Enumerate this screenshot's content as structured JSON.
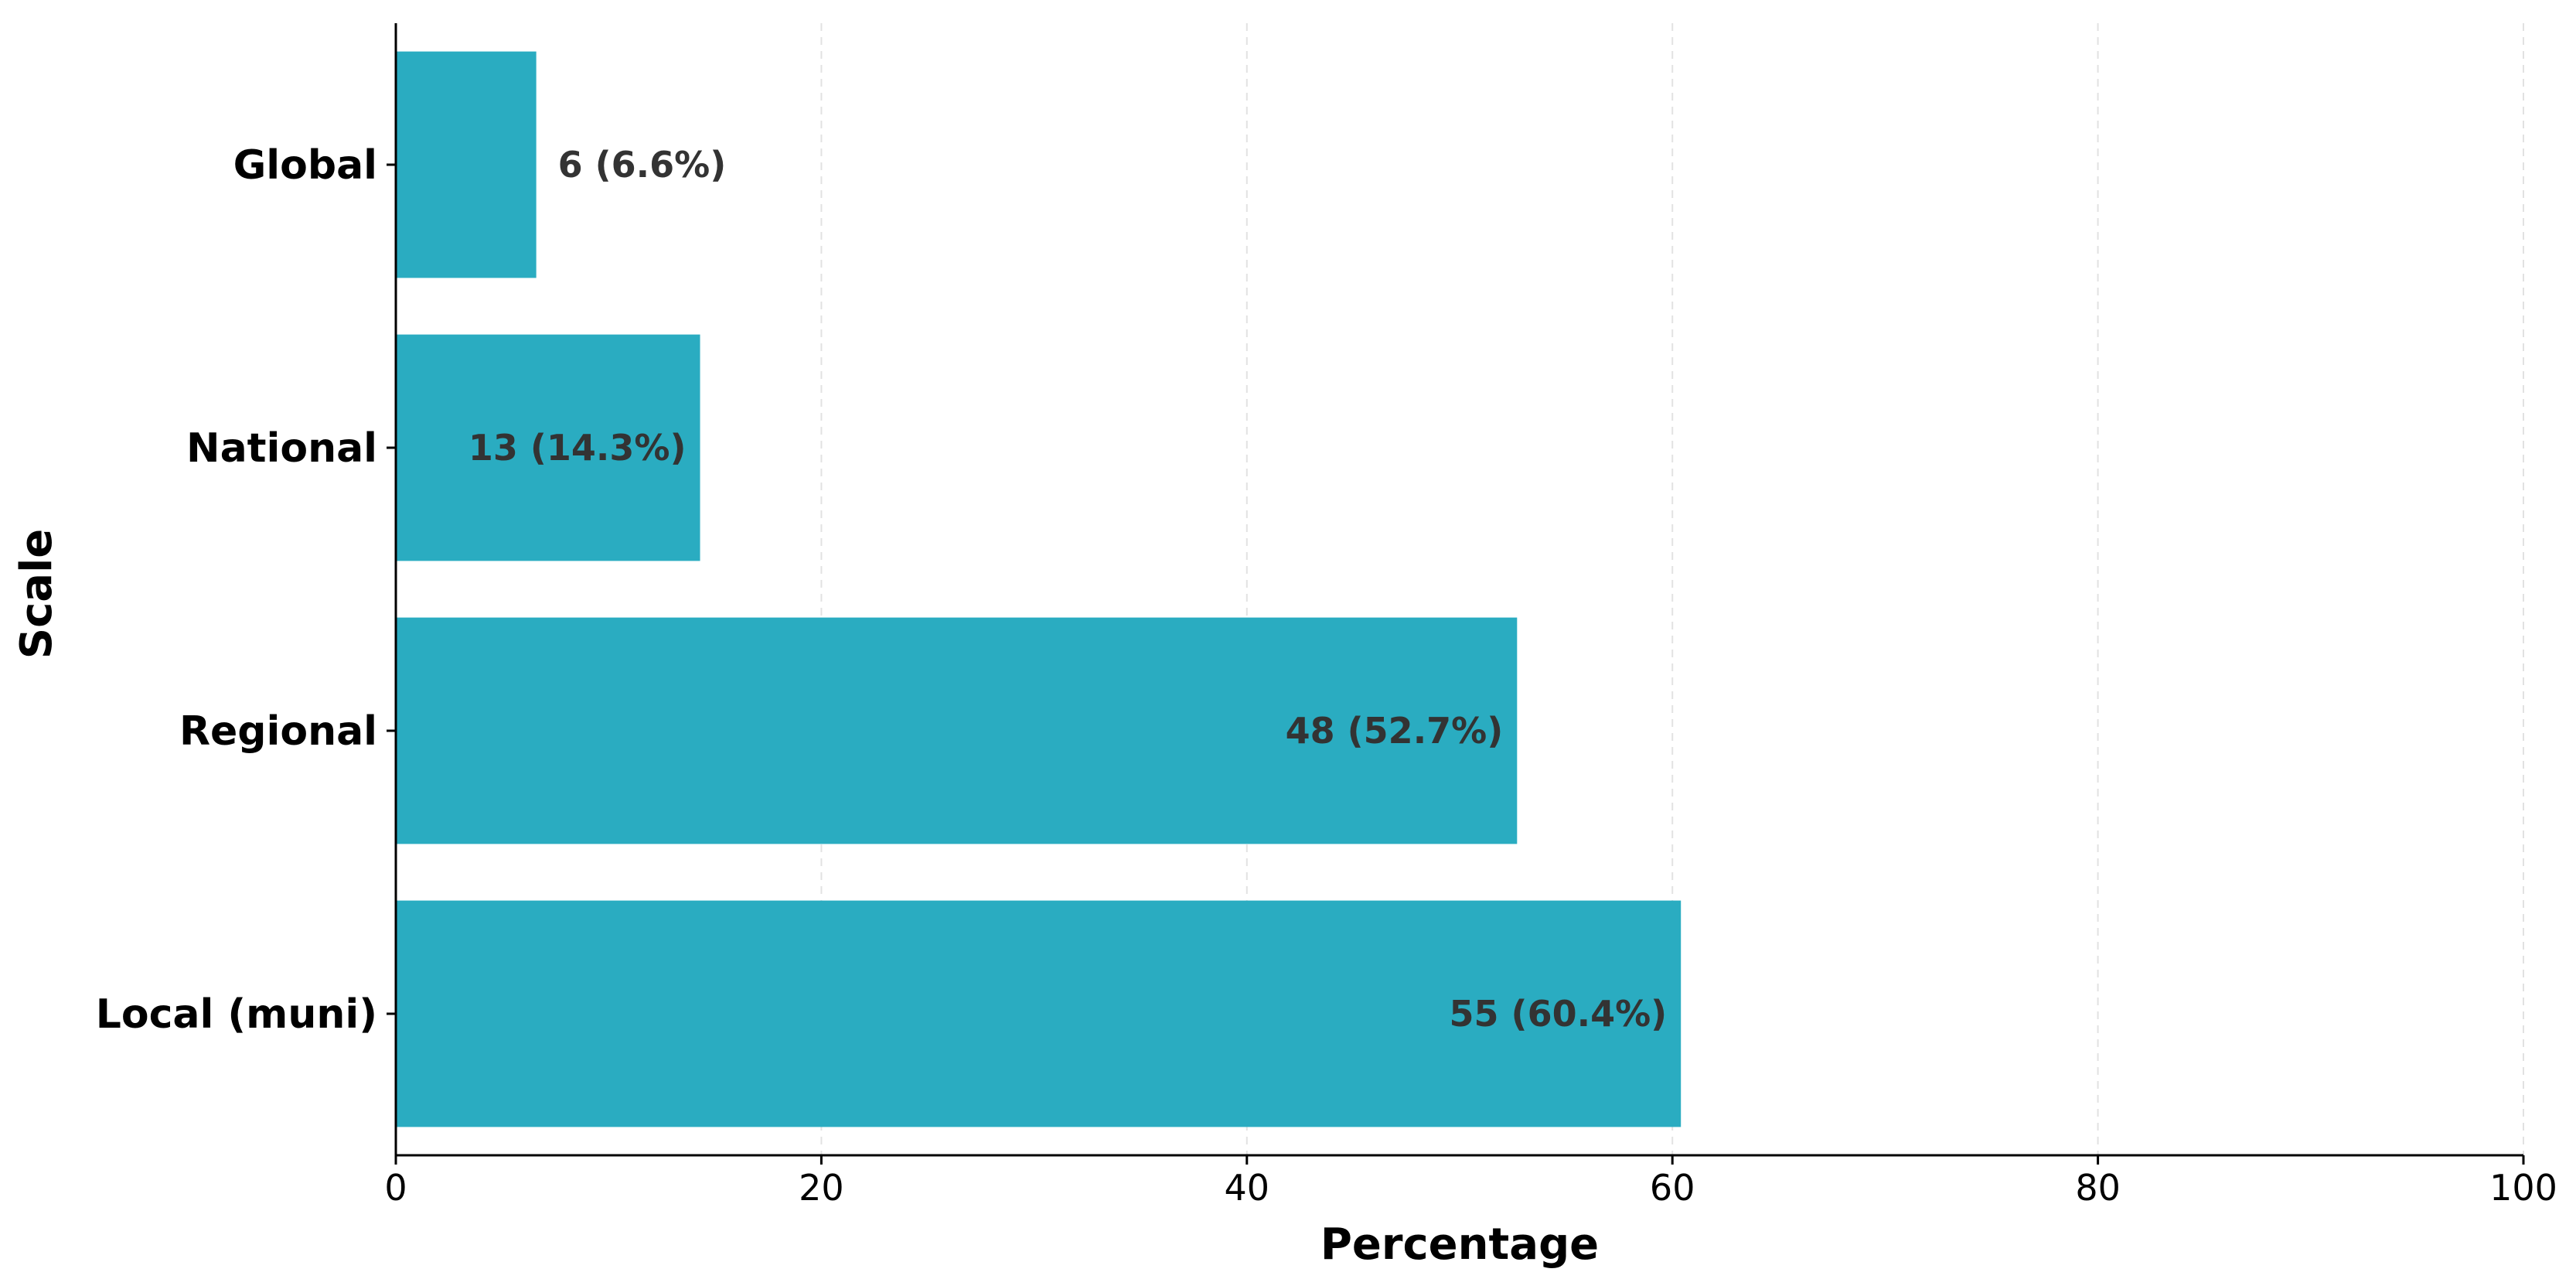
{
  "chart_data": {
    "type": "bar",
    "orientation": "horizontal",
    "categories": [
      "Global",
      "National",
      "Regional",
      "Local (muni)"
    ],
    "values": [
      6.6,
      14.3,
      52.7,
      60.4
    ],
    "counts": [
      6,
      13,
      48,
      55
    ],
    "data_labels": [
      "6 (6.6%)",
      "13 (14.3%)",
      "48 (52.7%)",
      "55 (60.4%)"
    ],
    "xlabel": "Percentage",
    "ylabel": "Scale",
    "xlim": [
      0,
      100
    ],
    "xticks": [
      0,
      20,
      40,
      60,
      80,
      100
    ],
    "grid": "vertical dashed",
    "bar_color": "#2aacc1",
    "label_color": "#333333"
  }
}
